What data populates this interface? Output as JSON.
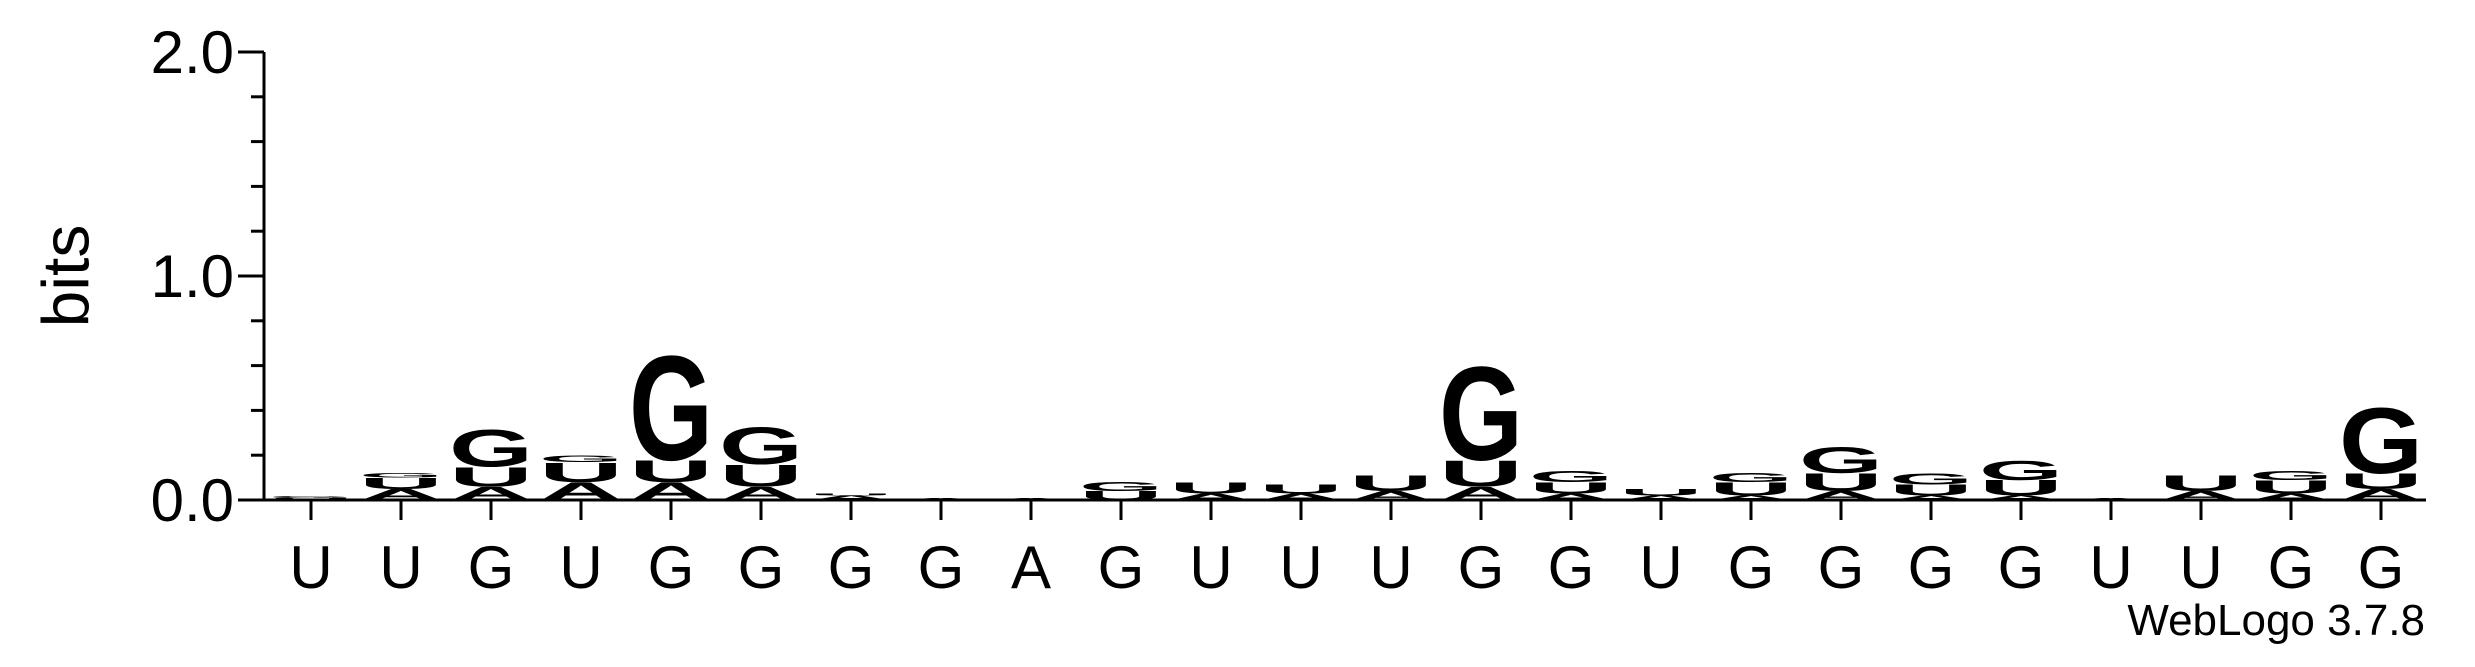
{
  "chart_data": {
    "type": "logo",
    "ylabel": "bits",
    "ylim": [
      0,
      2.0
    ],
    "yticks": [
      {
        "value": 0,
        "label": "0.0"
      },
      {
        "value": 1,
        "label": "1.0"
      },
      {
        "value": 2,
        "label": "2.0"
      }
    ],
    "yminorticks": [
      0.2,
      0.4,
      0.6,
      0.8,
      1.2,
      1.4,
      1.6,
      1.8
    ],
    "categories": [
      "U",
      "U",
      "G",
      "U",
      "G",
      "G",
      "G",
      "G",
      "A",
      "G",
      "U",
      "U",
      "U",
      "G",
      "G",
      "U",
      "G",
      "G",
      "G",
      "G",
      "U",
      "U",
      "G",
      "G"
    ],
    "series": [
      {
        "name": "A",
        "color": "#e07000",
        "values": [
          0,
          0.05,
          0.06,
          0.08,
          0.08,
          0.06,
          0.02,
          0.01,
          0.01,
          0,
          0.03,
          0.03,
          0.04,
          0.06,
          0.03,
          0.02,
          0.02,
          0.04,
          0.02,
          0.02,
          0.01,
          0.04,
          0.03,
          0.05
        ]
      },
      {
        "name": "U",
        "color": "#ff8c00",
        "values": [
          0.01,
          0.05,
          0.09,
          0.09,
          0.1,
          0.1,
          0.01,
          0,
          0,
          0.04,
          0.05,
          0.04,
          0.07,
          0.12,
          0.05,
          0.03,
          0.06,
          0.08,
          0.05,
          0.07,
          0,
          0.07,
          0.06,
          0.07
        ]
      },
      {
        "name": "G",
        "color": "#0000ff",
        "values": [
          0.01,
          0.02,
          0.17,
          0.03,
          0.48,
          0.17,
          0,
          0,
          0,
          0.04,
          0,
          0,
          0,
          0.43,
          0.05,
          0,
          0.04,
          0.12,
          0.05,
          0.09,
          0,
          0,
          0.04,
          0.3
        ]
      }
    ],
    "credit": "WebLogo 3.7.8"
  }
}
